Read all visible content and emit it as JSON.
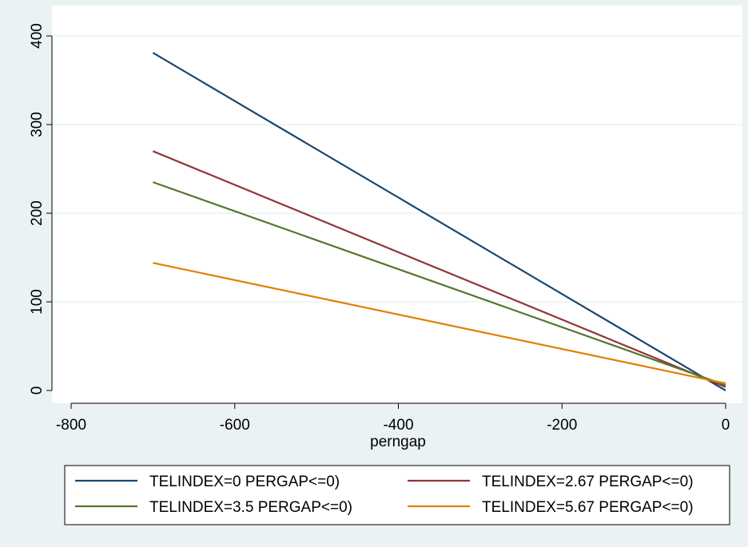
{
  "chart_data": {
    "type": "line",
    "xlabel": "perngap",
    "ylabel": "",
    "xlim": [
      -800,
      0
    ],
    "ylim": [
      0,
      400
    ],
    "xticks": [
      -800,
      -600,
      -400,
      -200,
      0
    ],
    "yticks": [
      0,
      100,
      200,
      300,
      400
    ],
    "grid": true,
    "legend_position": "bottom",
    "series": [
      {
        "name": "TELINDEX=0 PERGAP<=0)",
        "color": "#1a476f",
        "x": [
          -700,
          0
        ],
        "y": [
          381,
          0
        ]
      },
      {
        "name": "TELINDEX=2.67 PERGAP<=0)",
        "color": "#90353b",
        "x": [
          -700,
          0
        ],
        "y": [
          270,
          4
        ]
      },
      {
        "name": "TELINDEX=3.5 PERGAP<=0)",
        "color": "#55752f",
        "x": [
          -700,
          0
        ],
        "y": [
          235,
          6
        ]
      },
      {
        "name": "TELINDEX=5.67 PERGAP<=0)",
        "color": "#e37e00",
        "x": [
          -700,
          0
        ],
        "y": [
          144,
          8
        ]
      }
    ]
  }
}
